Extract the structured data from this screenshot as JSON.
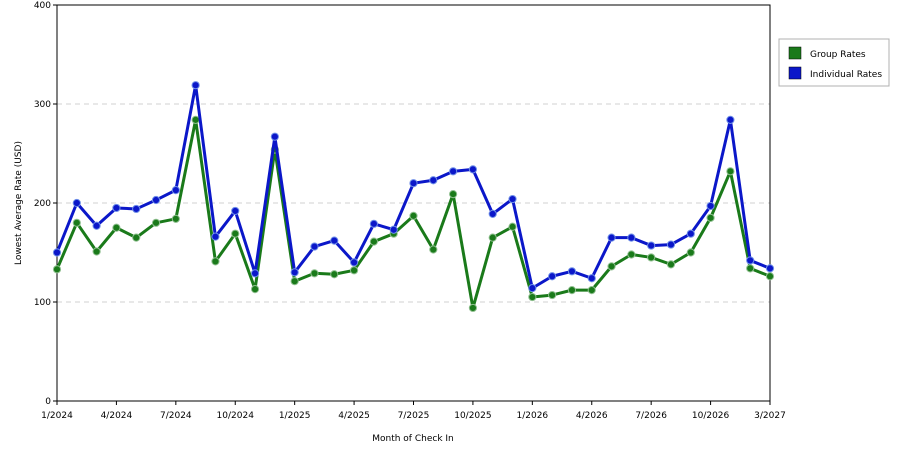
{
  "chart_data": {
    "type": "line",
    "xlabel": "Month of Check In",
    "ylabel": "Lowest Average Rate (USD)",
    "ylim": [
      0,
      400
    ],
    "yticks": [
      0,
      100,
      200,
      300,
      400
    ],
    "xticks": [
      "1/2024",
      "4/2024",
      "7/2024",
      "10/2024",
      "1/2025",
      "4/2025",
      "7/2025",
      "10/2025",
      "1/2026",
      "4/2026",
      "7/2026",
      "10/2026",
      "3/2027"
    ],
    "x": [
      "1/2024",
      "2/2024",
      "3/2024",
      "4/2024",
      "5/2024",
      "6/2024",
      "7/2024",
      "8/2024",
      "9/2024",
      "10/2024",
      "11/2024",
      "12/2024",
      "1/2025",
      "2/2025",
      "3/2025",
      "4/2025",
      "5/2025",
      "6/2025",
      "7/2025",
      "8/2025",
      "9/2025",
      "10/2025",
      "11/2025",
      "12/2025",
      "1/2026",
      "2/2026",
      "3/2026",
      "4/2026",
      "5/2026",
      "6/2026",
      "7/2026",
      "8/2026",
      "9/2026",
      "10/2026",
      "11/2026",
      "12/2026",
      "1/2027"
    ],
    "grid": "horizontal-dashed",
    "legend_position": "right",
    "series": [
      {
        "name": "Group Rates",
        "color": "#1a7a1a",
        "values": [
          133,
          180,
          151,
          175,
          165,
          180,
          184,
          284,
          141,
          169,
          113,
          254,
          121,
          129,
          128,
          132,
          161,
          169,
          187,
          153,
          209,
          94,
          165,
          176,
          105,
          107,
          112,
          112,
          136,
          148,
          145,
          138,
          150,
          185,
          232,
          134,
          126
        ]
      },
      {
        "name": "Individual Rates",
        "color": "#0b17c9",
        "values": [
          150,
          200,
          177,
          195,
          194,
          203,
          213,
          319,
          166,
          192,
          129,
          267,
          130,
          156,
          162,
          140,
          179,
          173,
          220,
          223,
          232,
          234,
          189,
          204,
          114,
          126,
          131,
          124,
          165,
          165,
          157,
          158,
          169,
          197,
          284,
          142,
          134
        ]
      }
    ]
  }
}
